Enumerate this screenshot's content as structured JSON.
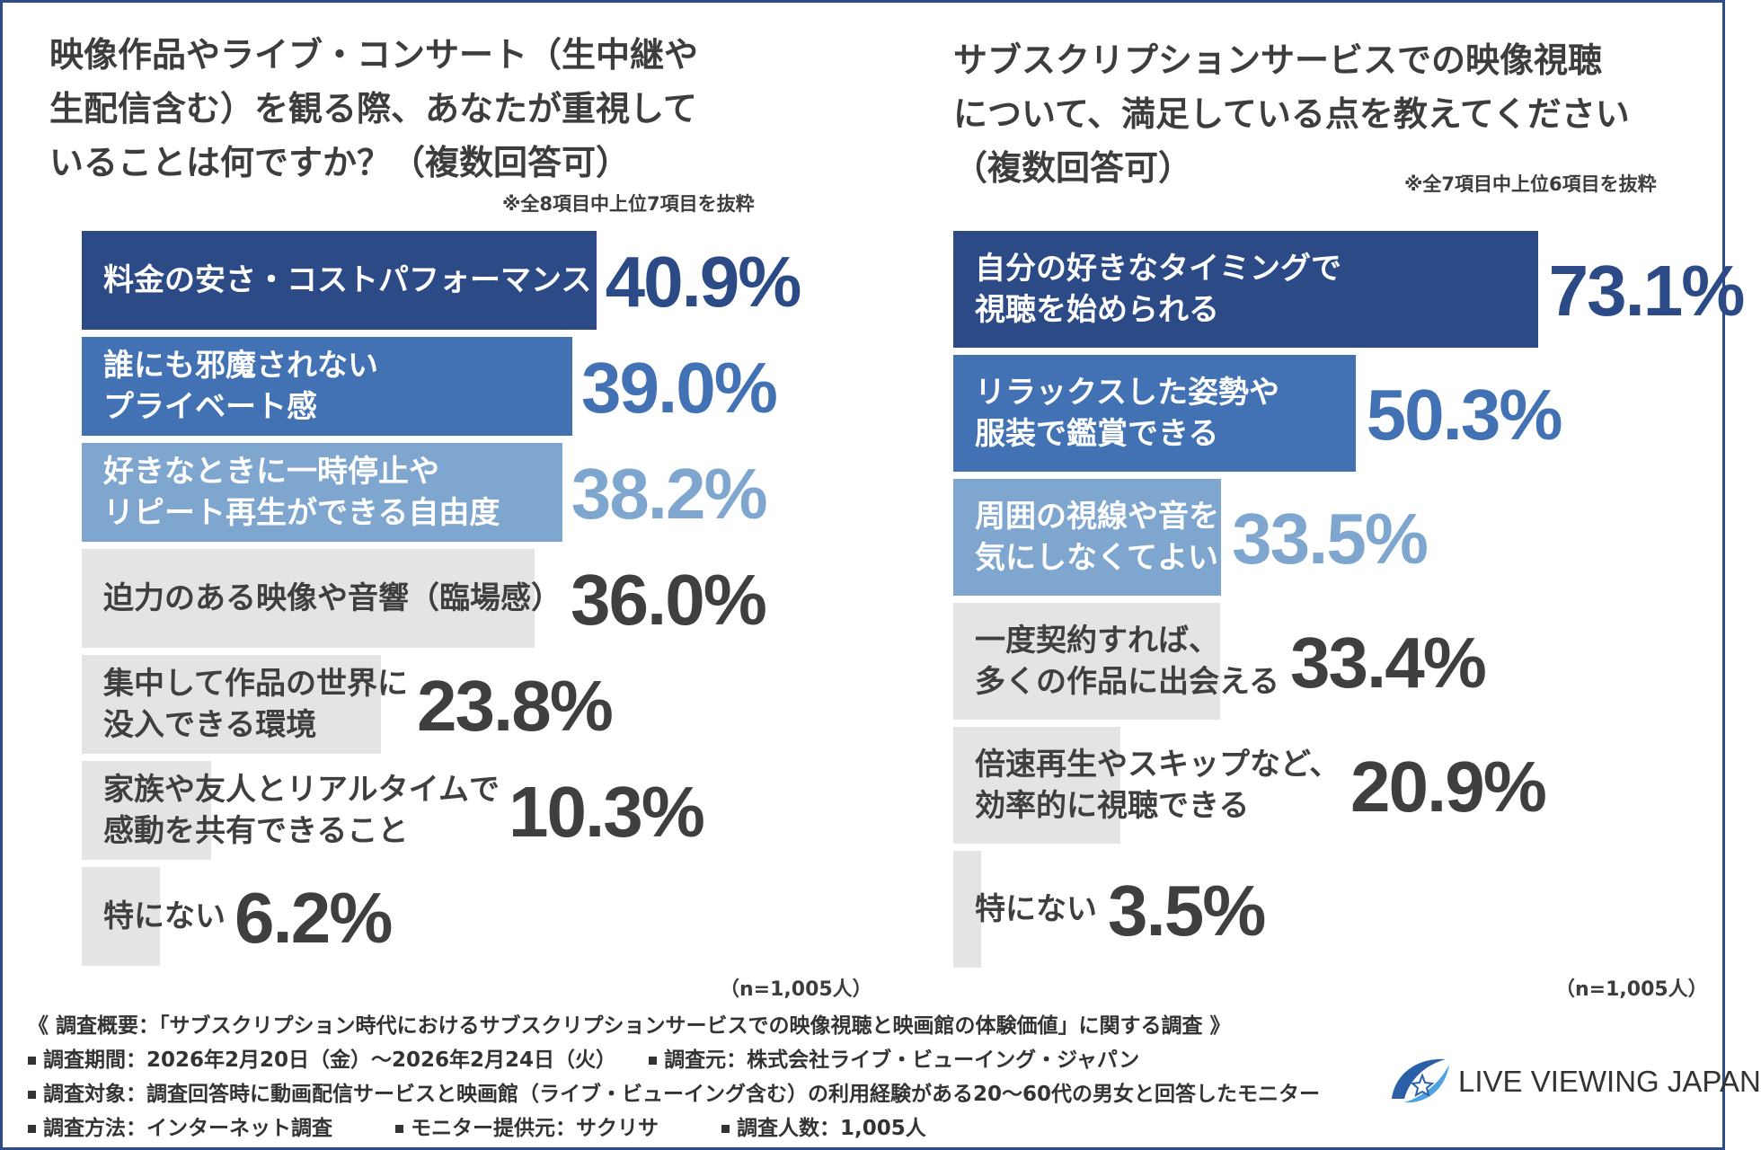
{
  "colors": {
    "dark": "#2b4a86",
    "mid": "#4272b3",
    "light": "#7ea6cf",
    "gray": "#e4e4e4",
    "gray_text": "#3f3f3f"
  },
  "left": {
    "title": "映像作品やライブ・コンサート（生中継や\n生配信含む）を観る際、あなたが重視して\nいることは何ですか？（複数回答可）",
    "note": "※全8項目中上位7項目を抜粋",
    "n_label": "（n=1,005人）"
  },
  "right": {
    "title": "サブスクリプションサービスでの映像視聴\nについて、満足している点を教えてください\n（複数回答可）",
    "note": "※全7項目中上位6項目を抜粋",
    "n_label": "（n=1,005人）"
  },
  "chart_data": [
    {
      "type": "bar",
      "orientation": "horizontal",
      "title": "映像作品やライブ・コンサート（生中継や生配信含む）を観る際、あなたが重視していることは何ですか？（複数回答可）",
      "unit": "%",
      "xlim": [
        0,
        100
      ],
      "categories": [
        "料金の安さ・コストパフォーマンス",
        "誰にも邪魔されない\nプライベート感",
        "好きなときに一時停止や\nリピート再生ができる自由度",
        "迫力のある映像や音響（臨場感）",
        "集中して作品の世界に\n没入できる環境",
        "家族や友人とリアルタイムで\n感動を共有できること",
        "特にない"
      ],
      "values": [
        40.9,
        39.0,
        38.2,
        36.0,
        23.8,
        10.3,
        6.2
      ],
      "value_labels": [
        "40.9%",
        "39.0%",
        "38.2%",
        "36.0%",
        "23.8%",
        "10.3%",
        "6.2%"
      ],
      "color_keys": [
        "dark",
        "mid",
        "light",
        "gray",
        "gray",
        "gray",
        "gray"
      ]
    },
    {
      "type": "bar",
      "orientation": "horizontal",
      "title": "サブスクリプションサービスでの映像視聴について、満足している点を教えてください（複数回答可）",
      "unit": "%",
      "xlim": [
        0,
        100
      ],
      "categories": [
        "自分の好きなタイミングで\n視聴を始められる",
        "リラックスした姿勢や\n服装で鑑賞できる",
        "周囲の視線や音を\n気にしなくてよい",
        "一度契約すれば、\n多くの作品に出会える",
        "倍速再生やスキップなど、\n効率的に視聴できる",
        "特にない"
      ],
      "values": [
        73.1,
        50.3,
        33.5,
        33.4,
        20.9,
        3.5
      ],
      "value_labels": [
        "73.1%",
        "50.3%",
        "33.5%",
        "33.4%",
        "20.9%",
        "3.5%"
      ],
      "color_keys": [
        "dark",
        "mid",
        "light",
        "gray",
        "gray",
        "gray"
      ]
    }
  ],
  "survey": {
    "heading": "《 調査概要：「サブスクリプション時代におけるサブスクリプションサービスでの映像視聴と映画館の体験価値」に関する調査 》",
    "period": "調査期間：2026年2月20日（金）～2026年2月24日（火）",
    "source": "調査元：株式会社ライブ・ビューイング・ジャパン",
    "target": "調査対象：調査回答時に動画配信サービスと映画館（ライブ・ビューイング含む）の利用経験がある20～60代の男女と回答したモニター",
    "method": "調査方法：インターネット調査",
    "provider": "モニター提供元：サクリサ",
    "count": "調査人数：1,005人"
  },
  "logo": {
    "text": "LIVE VIEWING JAPAN",
    "icon": "lvj-logo-icon"
  }
}
